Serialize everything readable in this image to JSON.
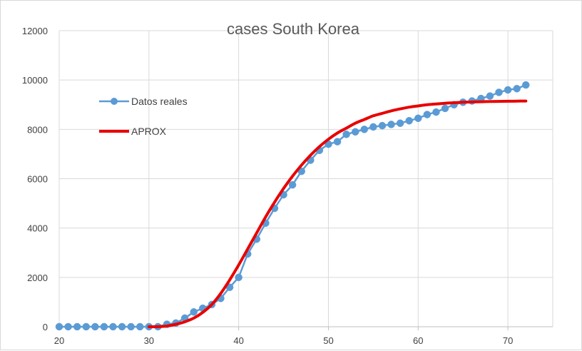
{
  "chart_data": {
    "type": "line",
    "title": "cases South Korea",
    "xlabel": "",
    "ylabel": "",
    "xlim": [
      20,
      75
    ],
    "ylim": [
      0,
      12000
    ],
    "x_ticks": [
      "20",
      "30",
      "40",
      "50",
      "60",
      "70"
    ],
    "y_ticks": [
      "0",
      "2000",
      "4000",
      "6000",
      "8000",
      "10000",
      "12000"
    ],
    "grid": "vertical-and-horizontal",
    "legend_position": "upper-left-inside",
    "series": [
      {
        "name": "Datos reales",
        "color": "#5b9bd5",
        "marker": "circle",
        "x": [
          20,
          21,
          22,
          23,
          24,
          25,
          26,
          27,
          28,
          29,
          30,
          31,
          32,
          33,
          34,
          35,
          36,
          37,
          38,
          39,
          40,
          41,
          42,
          43,
          44,
          45,
          46,
          47,
          48,
          49,
          50,
          51,
          52,
          53,
          54,
          55,
          56,
          57,
          58,
          59,
          60,
          61,
          62,
          63,
          64,
          65,
          66,
          67,
          68,
          69,
          70,
          71,
          72
        ],
        "y": [
          1,
          1,
          1,
          1,
          1,
          1,
          1,
          1,
          1,
          1,
          1,
          2,
          100,
          150,
          350,
          600,
          750,
          900,
          1150,
          1600,
          2000,
          2950,
          3550,
          4200,
          4800,
          5350,
          5750,
          6300,
          6750,
          7150,
          7400,
          7500,
          7800,
          7900,
          8000,
          8100,
          8150,
          8200,
          8250,
          8350,
          8450,
          8600,
          8700,
          8850,
          9000,
          9100,
          9150,
          9250,
          9350,
          9500,
          9600,
          9650,
          9800
        ]
      },
      {
        "name": "APROX",
        "color": "#e80000",
        "marker": "none",
        "x": [
          30,
          31,
          32,
          33,
          34,
          35,
          36,
          37,
          38,
          39,
          40,
          41,
          42,
          43,
          44,
          45,
          46,
          47,
          48,
          49,
          50,
          51,
          52,
          53,
          54,
          55,
          56,
          57,
          58,
          59,
          60,
          61,
          62,
          63,
          64,
          65,
          66,
          67,
          68,
          69,
          70,
          71,
          72
        ],
        "y": [
          1,
          3,
          30,
          100,
          200,
          350,
          580,
          900,
          1350,
          1900,
          2500,
          3150,
          3800,
          4450,
          5050,
          5600,
          6100,
          6550,
          6950,
          7300,
          7600,
          7850,
          8050,
          8250,
          8400,
          8550,
          8650,
          8750,
          8830,
          8900,
          8950,
          9000,
          9030,
          9060,
          9080,
          9100,
          9110,
          9120,
          9130,
          9135,
          9140,
          9145,
          9150
        ]
      }
    ]
  }
}
